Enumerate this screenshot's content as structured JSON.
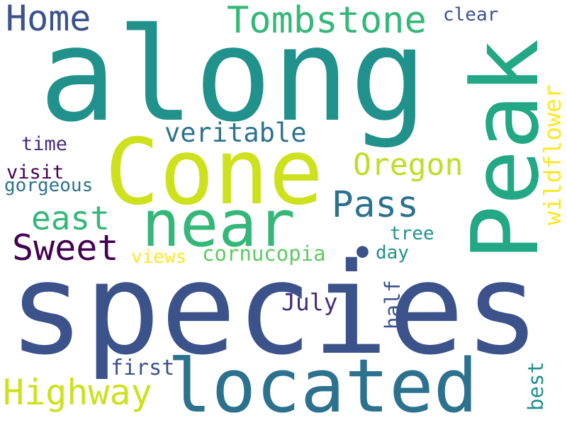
{
  "words": [
    {
      "key": "species",
      "text": "species",
      "color": "#3b528b",
      "orient": "h"
    },
    {
      "key": "along",
      "text": "along",
      "color": "#21918c",
      "orient": "h"
    },
    {
      "key": "cone",
      "text": "Cone",
      "color": "#cde11d",
      "orient": "h"
    },
    {
      "key": "peak",
      "text": "Peak",
      "color": "#22a884",
      "orient": "v"
    },
    {
      "key": "located",
      "text": "located",
      "color": "#2c728e",
      "orient": "h"
    },
    {
      "key": "near",
      "text": "near",
      "color": "#35b779",
      "orient": "h"
    },
    {
      "key": "tombstone",
      "text": "Tombstone",
      "color": "#35b779",
      "orient": "h"
    },
    {
      "key": "home",
      "text": "Home",
      "color": "#3b528b",
      "orient": "h"
    },
    {
      "key": "highway",
      "text": "Highway",
      "color": "#cde11d",
      "orient": "h"
    },
    {
      "key": "sweet",
      "text": "Sweet",
      "color": "#440154",
      "orient": "h"
    },
    {
      "key": "pass",
      "text": "Pass",
      "color": "#2c728e",
      "orient": "h"
    },
    {
      "key": "east",
      "text": "east",
      "color": "#35b779",
      "orient": "h"
    },
    {
      "key": "oregon",
      "text": "Oregon",
      "color": "#bddf26",
      "orient": "h"
    },
    {
      "key": "wildflower",
      "text": "wildflower",
      "color": "#fde725",
      "orient": "v"
    },
    {
      "key": "veritable",
      "text": "veritable",
      "color": "#2c728e",
      "orient": "h"
    },
    {
      "key": "cornucopia",
      "text": "cornucopia",
      "color": "#5ec962",
      "orient": "h"
    },
    {
      "key": "july",
      "text": "July",
      "color": "#472d7b",
      "orient": "h"
    },
    {
      "key": "half",
      "text": "half",
      "color": "#3b528b",
      "orient": "v"
    },
    {
      "key": "first",
      "text": "first",
      "color": "#3b528b",
      "orient": "h"
    },
    {
      "key": "best",
      "text": "best",
      "color": "#21918c",
      "orient": "v"
    },
    {
      "key": "time",
      "text": "time",
      "color": "#472d7b",
      "orient": "h"
    },
    {
      "key": "visit",
      "text": "visit",
      "color": "#440154",
      "orient": "h"
    },
    {
      "key": "gorgeous",
      "text": "gorgeous",
      "color": "#2c728e",
      "orient": "h"
    },
    {
      "key": "views",
      "text": "views",
      "color": "#fde725",
      "orient": "h"
    },
    {
      "key": "tree",
      "text": "tree",
      "color": "#21918c",
      "orient": "h"
    },
    {
      "key": "day",
      "text": "day",
      "color": "#21918c",
      "orient": "h"
    },
    {
      "key": "clear",
      "text": "clear",
      "color": "#3b528b",
      "orient": "h"
    },
    {
      "key": "dot",
      "text": "●",
      "color": "#3b528b",
      "orient": "h"
    }
  ]
}
